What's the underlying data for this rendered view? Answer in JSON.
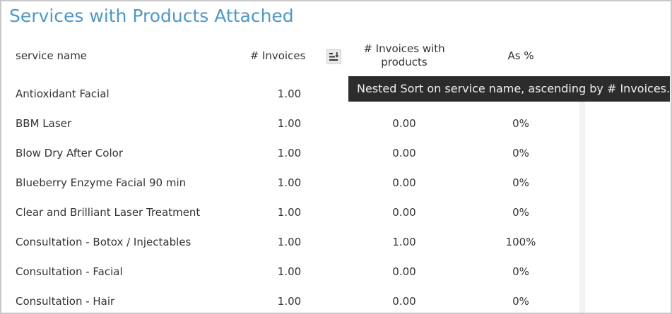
{
  "title": "Services with Products Attached",
  "columns": {
    "service_name": "service name",
    "invoices": "# Invoices",
    "invoices_with_products": "# Invoices with products",
    "as_pct": "As %"
  },
  "sort_button_icon": "nested-sort-icon",
  "tooltip": "Nested Sort on service name, ascending by # Invoices.",
  "rows": [
    {
      "name": "Antioxidant Facial",
      "invoices": "1.00",
      "with_products": "",
      "pct": ""
    },
    {
      "name": "BBM Laser",
      "invoices": "1.00",
      "with_products": "0.00",
      "pct": "0%"
    },
    {
      "name": "Blow Dry After Color",
      "invoices": "1.00",
      "with_products": "0.00",
      "pct": "0%"
    },
    {
      "name": "Blueberry Enzyme Facial 90 min",
      "invoices": "1.00",
      "with_products": "0.00",
      "pct": "0%"
    },
    {
      "name": "Clear and Brilliant Laser Treatment",
      "invoices": "1.00",
      "with_products": "0.00",
      "pct": "0%"
    },
    {
      "name": "Consultation - Botox / Injectables",
      "invoices": "1.00",
      "with_products": "1.00",
      "pct": "100%"
    },
    {
      "name": "Consultation - Facial",
      "invoices": "1.00",
      "with_products": "0.00",
      "pct": "0%"
    },
    {
      "name": "Consultation - Hair",
      "invoices": "1.00",
      "with_products": "0.00",
      "pct": "0%"
    }
  ],
  "colors": {
    "title": "#4f97c6",
    "text": "#333333",
    "tooltip_bg": "#2c2c2c",
    "border": "#c9c9c9"
  }
}
